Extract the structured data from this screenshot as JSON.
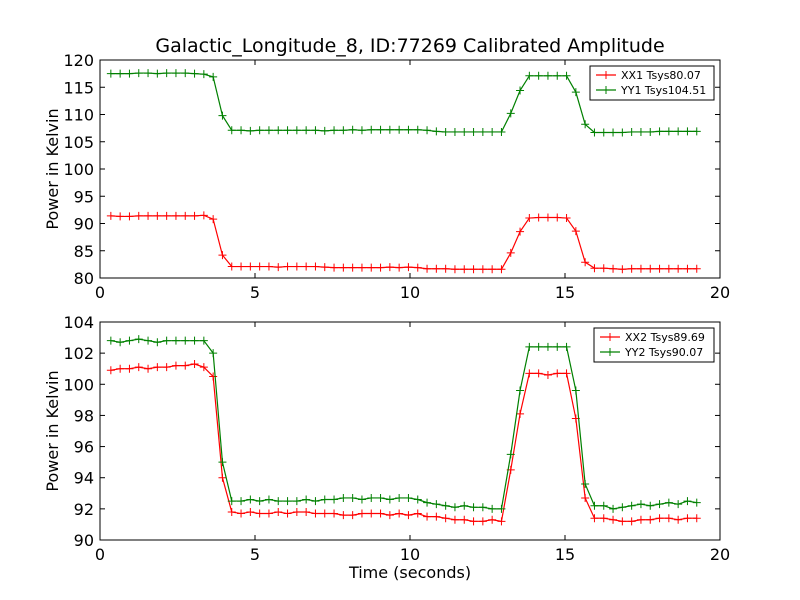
{
  "figure_title": "Galactic_Longitude_8, ID:77269 Calibrated Amplitude",
  "chart_data": [
    {
      "type": "line",
      "title": "Galactic_Longitude_8, ID:77269 Calibrated Amplitude",
      "xlabel": "",
      "ylabel": "Power in Kelvin",
      "xlim": [
        0,
        20
      ],
      "ylim": [
        80,
        120
      ],
      "xticks": [
        "0",
        "5",
        "10",
        "15",
        "20"
      ],
      "yticks": [
        "80",
        "85",
        "90",
        "95",
        "100",
        "105",
        "110",
        "115",
        "120"
      ],
      "grid": false,
      "legend_position": "top-right",
      "x": [
        0.35,
        0.65,
        0.95,
        1.25,
        1.55,
        1.85,
        2.15,
        2.45,
        2.75,
        3.05,
        3.35,
        3.65,
        3.95,
        4.25,
        4.55,
        4.85,
        5.15,
        5.45,
        5.75,
        6.05,
        6.35,
        6.65,
        6.95,
        7.25,
        7.55,
        7.85,
        8.15,
        8.45,
        8.75,
        9.05,
        9.35,
        9.65,
        9.95,
        10.25,
        10.55,
        10.85,
        11.15,
        11.45,
        11.75,
        12.05,
        12.35,
        12.65,
        12.95,
        13.25,
        13.55,
        13.85,
        14.15,
        14.45,
        14.75,
        15.05,
        15.35,
        15.65,
        15.95,
        16.25,
        16.55,
        16.85,
        17.15,
        17.45,
        17.75,
        18.05,
        18.35,
        18.65,
        18.95,
        19.25
      ],
      "series": [
        {
          "name": "XX1 Tsys80.07",
          "color": "#ff0000",
          "values": [
            91.4,
            91.3,
            91.3,
            91.4,
            91.4,
            91.4,
            91.4,
            91.4,
            91.4,
            91.4,
            91.5,
            90.8,
            84.2,
            82.1,
            82.1,
            82.1,
            82.1,
            82.1,
            82.0,
            82.1,
            82.1,
            82.1,
            82.1,
            82.0,
            81.9,
            81.9,
            81.9,
            81.9,
            81.9,
            81.9,
            82.0,
            81.9,
            82.0,
            81.9,
            81.7,
            81.7,
            81.7,
            81.6,
            81.6,
            81.6,
            81.6,
            81.6,
            81.6,
            84.6,
            88.5,
            91.0,
            91.1,
            91.1,
            91.1,
            91.0,
            88.6,
            82.9,
            81.8,
            81.8,
            81.7,
            81.6,
            81.7,
            81.7,
            81.7,
            81.7,
            81.7,
            81.7,
            81.7,
            81.7
          ]
        },
        {
          "name": "YY1 Tsys104.51",
          "color": "#008000",
          "values": [
            117.5,
            117.5,
            117.5,
            117.6,
            117.6,
            117.5,
            117.6,
            117.6,
            117.6,
            117.5,
            117.4,
            116.9,
            109.8,
            107.1,
            107.1,
            107.0,
            107.1,
            107.1,
            107.1,
            107.1,
            107.1,
            107.1,
            107.1,
            107.0,
            107.1,
            107.1,
            107.2,
            107.1,
            107.2,
            107.2,
            107.2,
            107.2,
            107.2,
            107.2,
            107.1,
            106.9,
            106.8,
            106.8,
            106.8,
            106.8,
            106.8,
            106.8,
            106.8,
            110.2,
            114.4,
            117.1,
            117.1,
            117.1,
            117.1,
            117.1,
            114.1,
            108.2,
            106.7,
            106.7,
            106.7,
            106.7,
            106.8,
            106.8,
            106.8,
            106.9,
            106.9,
            106.9,
            106.9,
            106.9
          ]
        }
      ]
    },
    {
      "type": "line",
      "title": "",
      "xlabel": "Time (seconds)",
      "ylabel": "Power in Kelvin",
      "xlim": [
        0,
        20
      ],
      "ylim": [
        90,
        104
      ],
      "xticks": [
        "0",
        "5",
        "10",
        "15",
        "20"
      ],
      "yticks": [
        "90",
        "92",
        "94",
        "96",
        "98",
        "100",
        "102",
        "104"
      ],
      "grid": false,
      "legend_position": "top-right",
      "x": [
        0.35,
        0.65,
        0.95,
        1.25,
        1.55,
        1.85,
        2.15,
        2.45,
        2.75,
        3.05,
        3.35,
        3.65,
        3.95,
        4.25,
        4.55,
        4.85,
        5.15,
        5.45,
        5.75,
        6.05,
        6.35,
        6.65,
        6.95,
        7.25,
        7.55,
        7.85,
        8.15,
        8.45,
        8.75,
        9.05,
        9.35,
        9.65,
        9.95,
        10.25,
        10.55,
        10.85,
        11.15,
        11.45,
        11.75,
        12.05,
        12.35,
        12.65,
        12.95,
        13.25,
        13.55,
        13.85,
        14.15,
        14.45,
        14.75,
        15.05,
        15.35,
        15.65,
        15.95,
        16.25,
        16.55,
        16.85,
        17.15,
        17.45,
        17.75,
        18.05,
        18.35,
        18.65,
        18.95,
        19.25
      ],
      "series": [
        {
          "name": "XX2 Tsys89.69",
          "color": "#ff0000",
          "values": [
            100.9,
            101.0,
            101.0,
            101.1,
            101.0,
            101.1,
            101.1,
            101.2,
            101.2,
            101.3,
            101.1,
            100.5,
            94.0,
            91.8,
            91.7,
            91.8,
            91.7,
            91.7,
            91.8,
            91.7,
            91.8,
            91.8,
            91.7,
            91.7,
            91.7,
            91.6,
            91.6,
            91.7,
            91.7,
            91.7,
            91.6,
            91.7,
            91.6,
            91.7,
            91.5,
            91.5,
            91.4,
            91.3,
            91.3,
            91.2,
            91.2,
            91.3,
            91.2,
            94.5,
            98.1,
            100.7,
            100.7,
            100.6,
            100.7,
            100.7,
            97.8,
            92.7,
            91.4,
            91.4,
            91.3,
            91.2,
            91.2,
            91.3,
            91.3,
            91.4,
            91.4,
            91.3,
            91.4,
            91.4
          ]
        },
        {
          "name": "YY2 Tsys90.07",
          "color": "#008000",
          "values": [
            102.8,
            102.7,
            102.8,
            102.9,
            102.8,
            102.7,
            102.8,
            102.8,
            102.8,
            102.8,
            102.8,
            102.0,
            95.0,
            92.5,
            92.5,
            92.6,
            92.5,
            92.6,
            92.5,
            92.5,
            92.5,
            92.6,
            92.5,
            92.6,
            92.6,
            92.7,
            92.7,
            92.6,
            92.7,
            92.7,
            92.6,
            92.7,
            92.7,
            92.6,
            92.4,
            92.3,
            92.2,
            92.1,
            92.2,
            92.1,
            92.1,
            92.0,
            92.0,
            95.5,
            99.6,
            102.4,
            102.4,
            102.4,
            102.4,
            102.4,
            99.6,
            93.6,
            92.2,
            92.2,
            92.0,
            92.1,
            92.2,
            92.3,
            92.2,
            92.3,
            92.4,
            92.3,
            92.5,
            92.4
          ]
        }
      ]
    }
  ]
}
